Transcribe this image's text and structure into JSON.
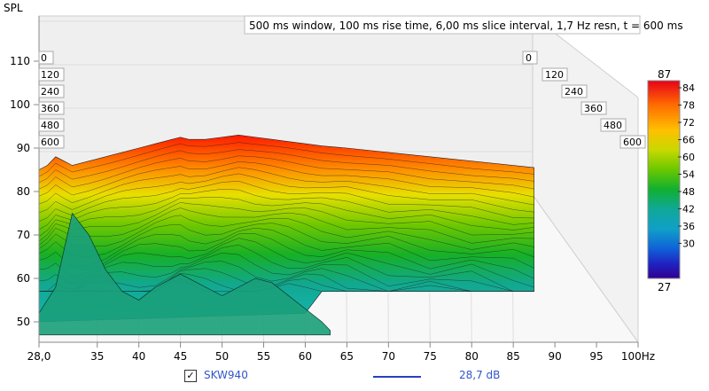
{
  "chart_data": {
    "type": "waterfall",
    "title": "500 ms window, 100 ms rise time, 6,00 ms slice interval, 1,7 Hz resn, t = 600 ms",
    "ylabel": "SPL",
    "xlabel": "",
    "x_ticks": [
      "28,0",
      "35",
      "40",
      "45",
      "50",
      "55",
      "60",
      "65",
      "70",
      "75",
      "80",
      "85",
      "90",
      "95",
      "100Hz"
    ],
    "x_tick_values": [
      28,
      35,
      40,
      45,
      50,
      55,
      60,
      65,
      70,
      75,
      80,
      85,
      90,
      95,
      100
    ],
    "xlim": [
      28,
      100
    ],
    "y_ticks": [
      "110",
      "100",
      "90",
      "80",
      "70",
      "60",
      "50"
    ],
    "y_tick_values": [
      110,
      100,
      90,
      80,
      70,
      60,
      50
    ],
    "ylim": [
      47,
      115
    ],
    "time_ticks": [
      "0",
      "120",
      "240",
      "360",
      "480",
      "600"
    ],
    "time_tick_values": [
      0,
      120,
      240,
      360,
      480,
      600
    ],
    "colorbar": {
      "max_label": "87",
      "min_label": "27",
      "ticks": [
        "84",
        "78",
        "72",
        "66",
        "60",
        "54",
        "48",
        "42",
        "36",
        "30"
      ]
    },
    "front_slice_t0": {
      "x": [
        28,
        29,
        30,
        31,
        32,
        34,
        36,
        38,
        40,
        42,
        44,
        45,
        46,
        48,
        50,
        52,
        54,
        56,
        58,
        60,
        62,
        65,
        70,
        75,
        80,
        85,
        87.5
      ],
      "y": [
        85,
        86,
        88,
        87,
        86,
        87,
        88,
        89,
        90,
        91,
        92,
        92.5,
        92,
        92,
        92.5,
        93,
        92.5,
        92,
        91.5,
        91,
        90.5,
        90,
        89,
        88,
        87,
        86,
        85.5
      ]
    },
    "late_slice_t600": {
      "x": [
        28,
        30,
        32,
        34,
        36,
        38,
        40,
        42,
        45,
        48,
        50,
        52,
        54,
        56,
        58,
        60,
        62,
        63
      ],
      "y": [
        52,
        58,
        75,
        70,
        62,
        57,
        55,
        58,
        61,
        58,
        56,
        58,
        60,
        59,
        56,
        53,
        50,
        48
      ]
    },
    "legend": [
      {
        "checked": true,
        "checkbox_mark": "✓",
        "name": "SKW940",
        "value": "28,7 dB",
        "color": "#2a3fbf"
      }
    ]
  },
  "colors": {
    "wall": "#efefef",
    "floor": "#f7f7f7",
    "grid": "#d8d8d8"
  }
}
